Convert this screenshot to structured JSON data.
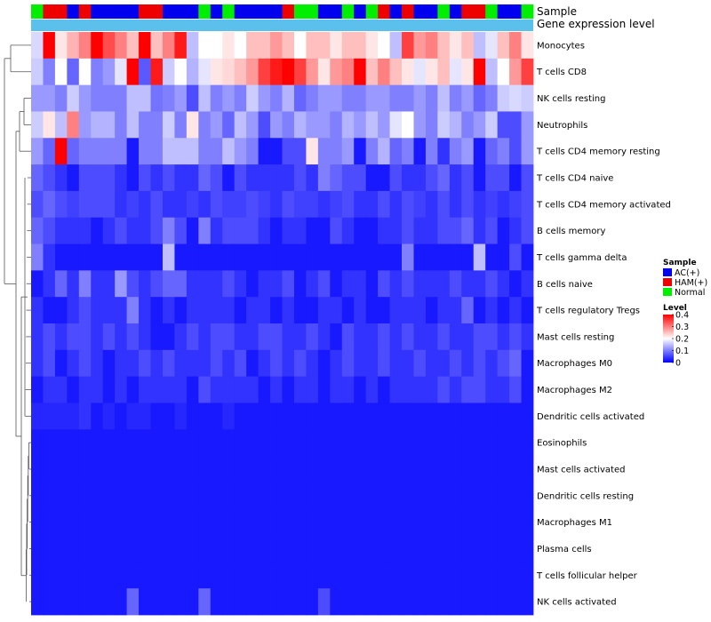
{
  "chart_data": {
    "type": "heatmap",
    "annotation_tracks": [
      "Sample",
      "Gene expression level"
    ],
    "rows": [
      "Monocytes",
      "T cells CD8",
      "NK cells resting",
      "Neutrophils",
      "T cells CD4 memory resting",
      "T cells CD4 naive",
      "T cells CD4 memory activated",
      "B cells memory",
      "T cells gamma delta",
      "B cells naive",
      "T cells regulatory  Tregs",
      "Mast cells resting",
      "Macrophages M0",
      "Macrophages M2",
      "Dendritic cells activated",
      "Eosinophils",
      "Mast cells activated",
      "Dendritic cells resting",
      "Macrophages M1",
      "Plasma cells",
      "T cells follicular helper",
      "NK cells activated"
    ],
    "sample_groups": [
      "Normal",
      "HAM(+)",
      "HAM(+)",
      "AC(+)",
      "HAM(+)",
      "AC(+)",
      "AC(+)",
      "AC(+)",
      "AC(+)",
      "HAM(+)",
      "HAM(+)",
      "AC(+)",
      "AC(+)",
      "AC(+)",
      "Normal",
      "AC(+)",
      "Normal",
      "AC(+)",
      "AC(+)",
      "AC(+)",
      "AC(+)",
      "HAM(+)",
      "Normal",
      "Normal",
      "AC(+)",
      "AC(+)",
      "Normal",
      "AC(+)",
      "Normal",
      "HAM(+)",
      "AC(+)",
      "HAM(+)",
      "AC(+)",
      "AC(+)",
      "Normal",
      "AC(+)",
      "HAM(+)",
      "HAM(+)",
      "Normal",
      "AC(+)",
      "AC(+)",
      "Normal"
    ],
    "values": [
      [
        0.17,
        0.4,
        0.22,
        0.26,
        0.3,
        0.4,
        0.34,
        0.3,
        0.25,
        0.4,
        0.25,
        0.3,
        0.38,
        0.15,
        0.2,
        0.2,
        0.22,
        0.2,
        0.25,
        0.25,
        0.28,
        0.25,
        0.2,
        0.25,
        0.25,
        0.22,
        0.25,
        0.25,
        0.22,
        0.2,
        0.15,
        0.35,
        0.28,
        0.3,
        0.25,
        0.22,
        0.25,
        0.15,
        0.18,
        0.25,
        0.3,
        0.22
      ],
      [
        0.16,
        0.1,
        0.2,
        0.08,
        0.2,
        0.1,
        0.12,
        0.18,
        0.4,
        0.07,
        0.38,
        0.16,
        0.2,
        0.14,
        0.18,
        0.22,
        0.23,
        0.25,
        0.28,
        0.35,
        0.38,
        0.4,
        0.35,
        0.28,
        0.22,
        0.28,
        0.3,
        0.4,
        0.25,
        0.3,
        0.25,
        0.22,
        0.18,
        0.22,
        0.25,
        0.18,
        0.22,
        0.4,
        0.15,
        0.2,
        0.28,
        0.35
      ],
      [
        0.12,
        0.12,
        0.1,
        0.16,
        0.12,
        0.1,
        0.1,
        0.1,
        0.15,
        0.15,
        0.09,
        0.1,
        0.12,
        0.06,
        0.15,
        0.1,
        0.12,
        0.1,
        0.16,
        0.12,
        0.1,
        0.14,
        0.08,
        0.1,
        0.12,
        0.12,
        0.1,
        0.1,
        0.12,
        0.12,
        0.1,
        0.1,
        0.12,
        0.1,
        0.15,
        0.1,
        0.12,
        0.08,
        0.1,
        0.16,
        0.17,
        0.16
      ],
      [
        0.16,
        0.22,
        0.15,
        0.3,
        0.12,
        0.14,
        0.14,
        0.1,
        0.15,
        0.1,
        0.1,
        0.16,
        0.1,
        0.22,
        0.1,
        0.12,
        0.08,
        0.15,
        0.12,
        0.06,
        0.12,
        0.1,
        0.14,
        0.12,
        0.12,
        0.1,
        0.14,
        0.12,
        0.15,
        0.12,
        0.18,
        0.2,
        0.12,
        0.1,
        0.16,
        0.14,
        0.1,
        0.12,
        0.16,
        0.06,
        0.06,
        0.12
      ],
      [
        0.12,
        0.08,
        0.4,
        0.08,
        0.1,
        0.1,
        0.1,
        0.1,
        0.02,
        0.1,
        0.1,
        0.15,
        0.15,
        0.15,
        0.1,
        0.1,
        0.15,
        0.12,
        0.1,
        0.02,
        0.02,
        0.06,
        0.06,
        0.22,
        0.1,
        0.1,
        0.12,
        0.02,
        0.1,
        0.14,
        0.08,
        0.1,
        0.02,
        0.1,
        0.04,
        0.1,
        0.12,
        0.02,
        0.08,
        0.1,
        0.06,
        0.12
      ],
      [
        0.08,
        0.06,
        0.04,
        0.02,
        0.06,
        0.06,
        0.06,
        0.04,
        0.02,
        0.06,
        0.04,
        0.06,
        0.04,
        0.04,
        0.08,
        0.06,
        0.02,
        0.06,
        0.04,
        0.04,
        0.04,
        0.04,
        0.06,
        0.04,
        0.1,
        0.08,
        0.06,
        0.06,
        0.02,
        0.02,
        0.06,
        0.04,
        0.04,
        0.06,
        0.08,
        0.04,
        0.06,
        0.02,
        0.06,
        0.06,
        0.02,
        0.06
      ],
      [
        0.06,
        0.08,
        0.06,
        0.05,
        0.06,
        0.06,
        0.06,
        0.04,
        0.05,
        0.04,
        0.06,
        0.04,
        0.04,
        0.05,
        0.04,
        0.06,
        0.05,
        0.05,
        0.06,
        0.05,
        0.04,
        0.06,
        0.05,
        0.05,
        0.04,
        0.05,
        0.06,
        0.04,
        0.04,
        0.06,
        0.04,
        0.06,
        0.05,
        0.04,
        0.06,
        0.04,
        0.06,
        0.04,
        0.05,
        0.04,
        0.05,
        0.06
      ],
      [
        0.08,
        0.06,
        0.04,
        0.04,
        0.04,
        0.02,
        0.04,
        0.06,
        0.04,
        0.04,
        0.06,
        0.1,
        0.06,
        0.02,
        0.1,
        0.04,
        0.06,
        0.06,
        0.06,
        0.04,
        0.02,
        0.04,
        0.04,
        0.02,
        0.02,
        0.06,
        0.04,
        0.02,
        0.02,
        0.04,
        0.04,
        0.06,
        0.04,
        0.04,
        0.06,
        0.06,
        0.08,
        0.04,
        0.06,
        0.02,
        0.04,
        0.06
      ],
      [
        0.1,
        0.04,
        0.02,
        0.02,
        0.02,
        0.02,
        0.02,
        0.02,
        0.02,
        0.02,
        0.02,
        0.15,
        0.02,
        0.02,
        0.02,
        0.02,
        0.02,
        0.02,
        0.02,
        0.02,
        0.02,
        0.02,
        0.02,
        0.02,
        0.02,
        0.02,
        0.02,
        0.02,
        0.02,
        0.02,
        0.02,
        0.1,
        0.02,
        0.02,
        0.02,
        0.02,
        0.02,
        0.15,
        0.02,
        0.02,
        0.06,
        0.02
      ],
      [
        0.02,
        0.04,
        0.08,
        0.04,
        0.1,
        0.04,
        0.04,
        0.12,
        0.06,
        0.04,
        0.06,
        0.08,
        0.08,
        0.04,
        0.04,
        0.04,
        0.06,
        0.04,
        0.02,
        0.04,
        0.04,
        0.06,
        0.02,
        0.04,
        0.06,
        0.02,
        0.04,
        0.04,
        0.02,
        0.06,
        0.04,
        0.06,
        0.04,
        0.04,
        0.04,
        0.06,
        0.04,
        0.04,
        0.06,
        0.04,
        0.02,
        0.04
      ],
      [
        0.04,
        0.02,
        0.02,
        0.04,
        0.06,
        0.04,
        0.04,
        0.04,
        0.1,
        0.04,
        0.02,
        0.04,
        0.02,
        0.04,
        0.04,
        0.04,
        0.04,
        0.02,
        0.04,
        0.04,
        0.02,
        0.04,
        0.02,
        0.02,
        0.04,
        0.04,
        0.02,
        0.04,
        0.02,
        0.02,
        0.04,
        0.04,
        0.04,
        0.02,
        0.04,
        0.04,
        0.08,
        0.02,
        0.04,
        0.02,
        0.04,
        0.02
      ],
      [
        0.04,
        0.06,
        0.04,
        0.06,
        0.06,
        0.04,
        0.06,
        0.04,
        0.06,
        0.04,
        0.02,
        0.02,
        0.04,
        0.06,
        0.04,
        0.06,
        0.06,
        0.04,
        0.04,
        0.06,
        0.06,
        0.04,
        0.04,
        0.06,
        0.04,
        0.02,
        0.06,
        0.04,
        0.04,
        0.06,
        0.04,
        0.06,
        0.04,
        0.04,
        0.06,
        0.04,
        0.04,
        0.06,
        0.06,
        0.04,
        0.06,
        0.04
      ],
      [
        0.04,
        0.06,
        0.02,
        0.04,
        0.06,
        0.04,
        0.02,
        0.04,
        0.04,
        0.06,
        0.04,
        0.06,
        0.04,
        0.04,
        0.04,
        0.06,
        0.04,
        0.06,
        0.02,
        0.04,
        0.06,
        0.04,
        0.06,
        0.04,
        0.02,
        0.04,
        0.06,
        0.04,
        0.04,
        0.06,
        0.04,
        0.04,
        0.06,
        0.04,
        0.04,
        0.06,
        0.04,
        0.06,
        0.04,
        0.06,
        0.08,
        0.02
      ],
      [
        0.02,
        0.04,
        0.04,
        0.02,
        0.04,
        0.04,
        0.02,
        0.04,
        0.02,
        0.04,
        0.04,
        0.04,
        0.04,
        0.02,
        0.06,
        0.04,
        0.04,
        0.04,
        0.04,
        0.02,
        0.04,
        0.02,
        0.04,
        0.04,
        0.02,
        0.04,
        0.04,
        0.02,
        0.04,
        0.02,
        0.04,
        0.04,
        0.04,
        0.04,
        0.06,
        0.04,
        0.06,
        0.06,
        0.04,
        0.04,
        0.06,
        0.02
      ],
      [
        0.03,
        0.03,
        0.03,
        0.03,
        0.04,
        0.02,
        0.03,
        0.02,
        0.03,
        0.03,
        0.02,
        0.02,
        0.03,
        0.02,
        0.02,
        0.02,
        0.03,
        0.02,
        0.02,
        0.02,
        0.02,
        0.02,
        0.02,
        0.02,
        0.02,
        0.02,
        0.02,
        0.02,
        0.02,
        0.02,
        0.02,
        0.02,
        0.02,
        0.02,
        0.02,
        0.02,
        0.02,
        0.02,
        0.02,
        0.02,
        0.02,
        0.02
      ],
      [
        0.02,
        0.02,
        0.02,
        0.02,
        0.02,
        0.02,
        0.02,
        0.02,
        0.02,
        0.02,
        0.02,
        0.02,
        0.02,
        0.02,
        0.02,
        0.02,
        0.02,
        0.02,
        0.02,
        0.02,
        0.02,
        0.02,
        0.02,
        0.02,
        0.02,
        0.02,
        0.02,
        0.02,
        0.02,
        0.02,
        0.02,
        0.02,
        0.02,
        0.02,
        0.02,
        0.02,
        0.02,
        0.02,
        0.02,
        0.02,
        0.02,
        0.02
      ],
      [
        0.02,
        0.02,
        0.02,
        0.02,
        0.02,
        0.02,
        0.02,
        0.02,
        0.02,
        0.02,
        0.02,
        0.02,
        0.02,
        0.02,
        0.02,
        0.02,
        0.02,
        0.02,
        0.02,
        0.02,
        0.02,
        0.02,
        0.02,
        0.02,
        0.02,
        0.02,
        0.02,
        0.02,
        0.02,
        0.02,
        0.02,
        0.02,
        0.02,
        0.02,
        0.02,
        0.02,
        0.02,
        0.02,
        0.02,
        0.02,
        0.02,
        0.02
      ],
      [
        0.02,
        0.02,
        0.02,
        0.02,
        0.02,
        0.02,
        0.02,
        0.02,
        0.02,
        0.02,
        0.02,
        0.02,
        0.02,
        0.02,
        0.02,
        0.02,
        0.02,
        0.02,
        0.02,
        0.02,
        0.02,
        0.02,
        0.02,
        0.02,
        0.02,
        0.02,
        0.02,
        0.02,
        0.02,
        0.02,
        0.02,
        0.02,
        0.02,
        0.02,
        0.02,
        0.02,
        0.02,
        0.02,
        0.02,
        0.02,
        0.02,
        0.02
      ],
      [
        0.02,
        0.02,
        0.02,
        0.02,
        0.02,
        0.02,
        0.02,
        0.02,
        0.02,
        0.02,
        0.02,
        0.02,
        0.02,
        0.02,
        0.02,
        0.02,
        0.02,
        0.02,
        0.02,
        0.02,
        0.02,
        0.02,
        0.02,
        0.02,
        0.02,
        0.02,
        0.02,
        0.02,
        0.02,
        0.02,
        0.02,
        0.02,
        0.02,
        0.02,
        0.02,
        0.02,
        0.02,
        0.02,
        0.02,
        0.02,
        0.02,
        0.02
      ],
      [
        0.02,
        0.02,
        0.02,
        0.02,
        0.02,
        0.02,
        0.02,
        0.02,
        0.02,
        0.02,
        0.02,
        0.02,
        0.02,
        0.02,
        0.02,
        0.02,
        0.02,
        0.02,
        0.02,
        0.02,
        0.02,
        0.02,
        0.02,
        0.02,
        0.02,
        0.02,
        0.02,
        0.02,
        0.02,
        0.02,
        0.02,
        0.02,
        0.02,
        0.02,
        0.02,
        0.02,
        0.02,
        0.02,
        0.02,
        0.02,
        0.02,
        0.02
      ],
      [
        0.02,
        0.02,
        0.02,
        0.02,
        0.02,
        0.02,
        0.02,
        0.02,
        0.02,
        0.02,
        0.02,
        0.02,
        0.02,
        0.02,
        0.02,
        0.02,
        0.02,
        0.02,
        0.02,
        0.02,
        0.02,
        0.02,
        0.02,
        0.02,
        0.02,
        0.02,
        0.02,
        0.02,
        0.02,
        0.02,
        0.02,
        0.02,
        0.02,
        0.02,
        0.02,
        0.02,
        0.02,
        0.02,
        0.02,
        0.02,
        0.02,
        0.02
      ],
      [
        0.02,
        0.02,
        0.02,
        0.02,
        0.02,
        0.02,
        0.02,
        0.02,
        0.08,
        0.02,
        0.02,
        0.02,
        0.02,
        0.02,
        0.08,
        0.02,
        0.02,
        0.02,
        0.02,
        0.02,
        0.02,
        0.02,
        0.02,
        0.02,
        0.06,
        0.02,
        0.02,
        0.02,
        0.02,
        0.02,
        0.02,
        0.02,
        0.02,
        0.02,
        0.02,
        0.02,
        0.02,
        0.02,
        0.02,
        0.02,
        0.02,
        0.02
      ]
    ],
    "color_scale": {
      "min": 0,
      "max": 0.4,
      "low": "#0000ff",
      "mid": "#ffffff",
      "high": "#ff0000"
    },
    "legend": {
      "sample_title": "Sample",
      "sample_entries": [
        {
          "label": "AC(+)",
          "color": "#0000ee"
        },
        {
          "label": "HAM(+)",
          "color": "#ee0000"
        },
        {
          "label": "Normal",
          "color": "#00ee00"
        }
      ],
      "level_title": "Level",
      "level_ticks": [
        "0.4",
        "0.3",
        "0.2",
        "0.1",
        "0"
      ],
      "level_tick_values": [
        0.4,
        0.3,
        0.2,
        0.1,
        0
      ],
      "placement": "right"
    },
    "expression_track_color": "#5bc0ec"
  }
}
